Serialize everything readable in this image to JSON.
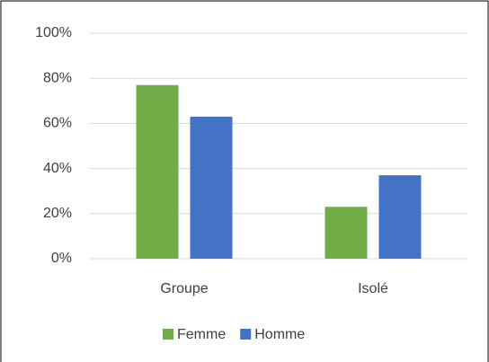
{
  "chart_data": {
    "type": "bar",
    "categories": [
      "Groupe",
      "Isolé"
    ],
    "series": [
      {
        "name": "Femme",
        "color": "#70ad47",
        "values": [
          77,
          23
        ]
      },
      {
        "name": "Homme",
        "color": "#4472c4",
        "values": [
          63,
          37
        ]
      }
    ],
    "ylim": [
      0,
      100
    ],
    "yticks": [
      {
        "value": 0,
        "label": "0%"
      },
      {
        "value": 20,
        "label": "20%"
      },
      {
        "value": 40,
        "label": "40%"
      },
      {
        "value": 60,
        "label": "60%"
      },
      {
        "value": 80,
        "label": "80%"
      },
      {
        "value": 100,
        "label": "100%"
      }
    ],
    "grid": true,
    "legend": "bottom"
  }
}
